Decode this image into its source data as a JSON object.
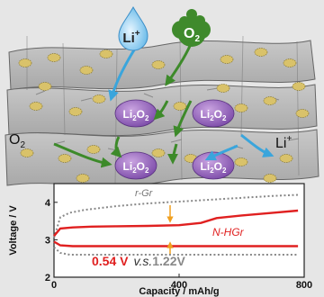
{
  "diagram": {
    "ions": {
      "li_drop": {
        "base": "Li",
        "sup": "+"
      },
      "o2_cloud": {
        "base": "O",
        "sub": "2"
      },
      "o2_side": {
        "base": "O",
        "sub": "2"
      },
      "li_side": {
        "base": "Li",
        "sup": "+"
      }
    },
    "products": [
      {
        "base": "Li",
        "sub1": "2",
        "mid": "O",
        "sub2": "2"
      },
      {
        "base": "Li",
        "sub1": "2",
        "mid": "O",
        "sub2": "2"
      },
      {
        "base": "Li",
        "sub1": "2",
        "mid": "O",
        "sub2": "2"
      },
      {
        "base": "Li",
        "sub1": "2",
        "mid": "O",
        "sub2": "2"
      }
    ]
  },
  "chart_data": {
    "type": "line",
    "xlabel": "Capacity / mAh/g",
    "ylabel": "Voltage / V",
    "xlim": [
      0,
      800
    ],
    "ylim": [
      2,
      4.5
    ],
    "xticks": [
      0,
      400,
      800
    ],
    "yticks": [
      2,
      3,
      4
    ],
    "series": [
      {
        "name": "r-Gr",
        "kind": "charge",
        "color": "#888888",
        "dash": true,
        "x": [
          0,
          20,
          50,
          100,
          200,
          300,
          400,
          500,
          600,
          700,
          780
        ],
        "y": [
          3.05,
          3.6,
          3.72,
          3.8,
          3.9,
          3.97,
          4.02,
          4.07,
          4.12,
          4.17,
          4.2
        ]
      },
      {
        "name": "r-Gr",
        "kind": "discharge",
        "color": "#888888",
        "dash": true,
        "x": [
          0,
          20,
          50,
          100,
          200,
          300,
          400,
          500,
          600,
          700,
          780
        ],
        "y": [
          2.8,
          2.65,
          2.6,
          2.6,
          2.6,
          2.6,
          2.6,
          2.6,
          2.6,
          2.6,
          2.6
        ]
      },
      {
        "name": "N-HGr",
        "kind": "charge",
        "color": "#e02020",
        "dash": false,
        "x": [
          0,
          20,
          60,
          120,
          200,
          300,
          400,
          470,
          520,
          600,
          700,
          780
        ],
        "y": [
          3.1,
          3.3,
          3.33,
          3.35,
          3.36,
          3.37,
          3.39,
          3.45,
          3.58,
          3.65,
          3.72,
          3.78
        ]
      },
      {
        "name": "N-HGr",
        "kind": "discharge",
        "color": "#e02020",
        "dash": false,
        "x": [
          0,
          20,
          60,
          120,
          200,
          300,
          400,
          500,
          600,
          700,
          780
        ],
        "y": [
          2.95,
          2.85,
          2.83,
          2.83,
          2.83,
          2.83,
          2.83,
          2.83,
          2.83,
          2.83,
          2.83
        ]
      }
    ],
    "annotations": {
      "rgr_label": "r-Gr",
      "nhgr_label": "N-HGr",
      "gap_red": "0.54 V",
      "gap_vs": "v.s.",
      "gap_grey": "1.22V"
    }
  }
}
